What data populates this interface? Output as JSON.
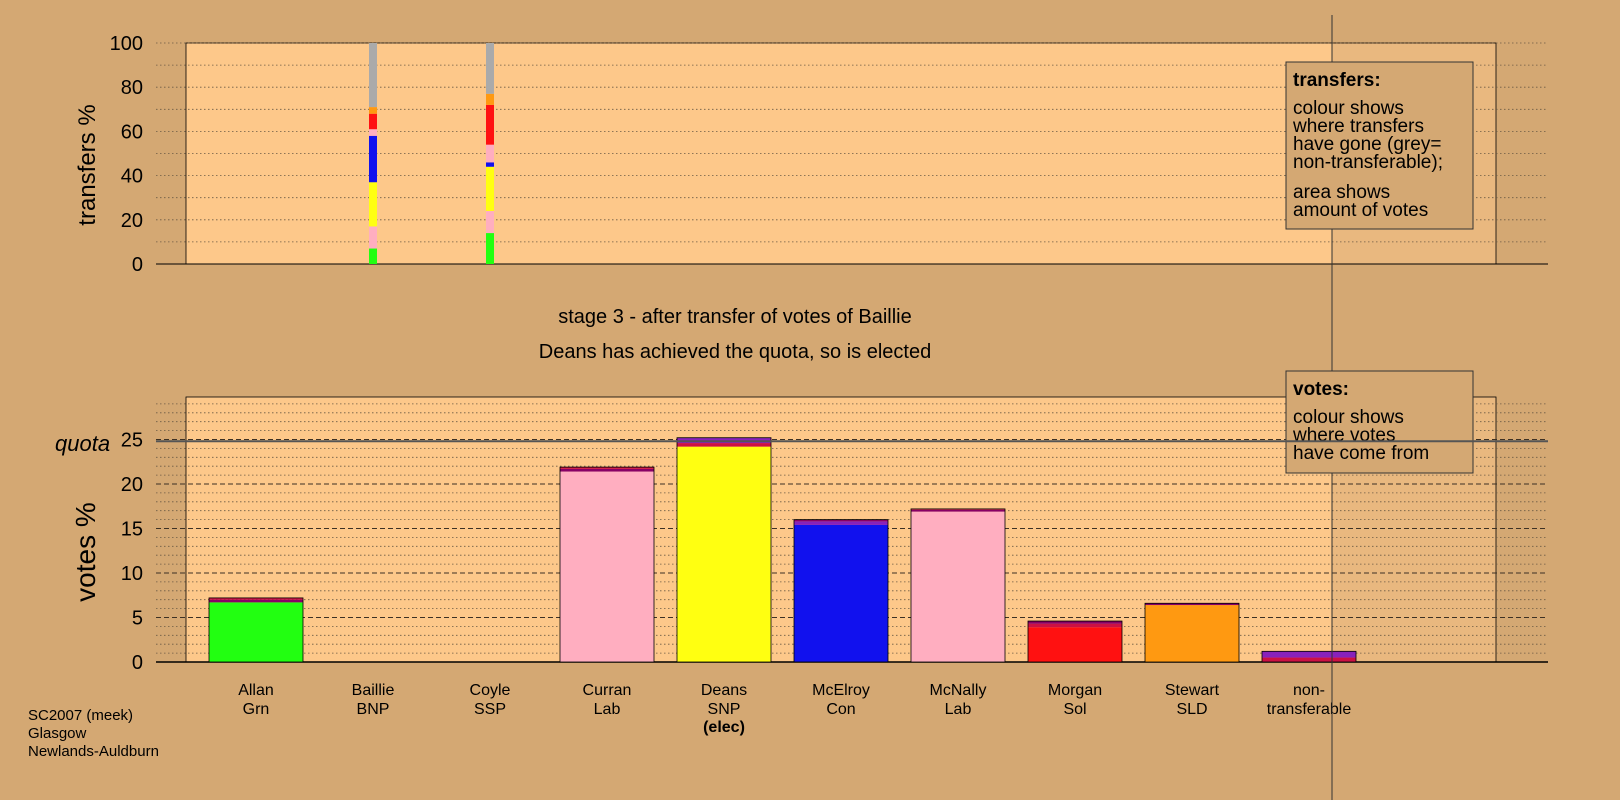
{
  "chart_data": [
    {
      "type": "bar",
      "panel": "transfers",
      "ylabel": "transfers %",
      "ylim": [
        0,
        100
      ],
      "yticks": [
        0,
        20,
        40,
        60,
        80,
        100
      ],
      "grid": "dotted minor lines every 10",
      "note": {
        "title": "transfers:",
        "line1": "colour shows",
        "line2": "where transfers",
        "line3": "have gone (grey=",
        "line4": "non-transferable);",
        "line5": "area shows",
        "line6": "amount of votes"
      },
      "bars": [
        {
          "candidate": "Baillie",
          "segments": [
            {
              "party": "Grn",
              "color": "#22ff11",
              "value": 7
            },
            {
              "party": "Lab",
              "color": "#ffaec0",
              "value": 10
            },
            {
              "party": "SNP",
              "color": "#ffff11",
              "value": 20
            },
            {
              "party": "Con",
              "color": "#1111ee",
              "value": 21
            },
            {
              "party": "Lab",
              "color": "#ffaec0",
              "value": 3
            },
            {
              "party": "Sol",
              "color": "#ff1111",
              "value": 7
            },
            {
              "party": "SLD",
              "color": "#ff9911",
              "value": 3
            },
            {
              "party": "non-transferable",
              "color": "#aaaaaa",
              "value": 29
            }
          ]
        },
        {
          "candidate": "Coyle",
          "segments": [
            {
              "party": "Grn",
              "color": "#22ff11",
              "value": 14
            },
            {
              "party": "Lab",
              "color": "#ffaec0",
              "value": 10
            },
            {
              "party": "SNP",
              "color": "#ffff11",
              "value": 20
            },
            {
              "party": "Con",
              "color": "#1111ee",
              "value": 2
            },
            {
              "party": "Lab",
              "color": "#ffaec0",
              "value": 8
            },
            {
              "party": "Sol",
              "color": "#ff1111",
              "value": 18
            },
            {
              "party": "SLD",
              "color": "#ff9911",
              "value": 5
            },
            {
              "party": "non-transferable",
              "color": "#aaaaaa",
              "value": 23
            }
          ]
        }
      ]
    },
    {
      "type": "bar",
      "panel": "votes",
      "title": "stage 3 - after transfer of votes of Baillie",
      "subtitle": "Deans has achieved the quota, so is elected",
      "ylabel": "votes %",
      "ylim": [
        0,
        30
      ],
      "yticks": [
        0,
        5,
        10,
        15,
        20,
        25
      ],
      "quota_label": "quota",
      "quota": 24.8,
      "grid": "dashed major every 5, dotted minor every 1",
      "note": {
        "title": "votes:",
        "line1": "colour shows",
        "line2": "where votes",
        "line3": "have come from"
      },
      "categories": [
        {
          "name": "Allan",
          "party": "Grn",
          "values": [
            {
              "color": "#22ff11",
              "value": 6.7
            },
            {
              "color": "#880066",
              "value": 0.3
            },
            {
              "color": "#cc1144",
              "value": 0.2
            }
          ]
        },
        {
          "name": "Baillie",
          "party": "BNP",
          "values": []
        },
        {
          "name": "Coyle",
          "party": "SSP",
          "values": []
        },
        {
          "name": "Curran",
          "party": "Lab",
          "values": [
            {
              "color": "#ffaec0",
              "value": 21.4
            },
            {
              "color": "#880066",
              "value": 0.3
            },
            {
              "color": "#cc1144",
              "value": 0.2
            }
          ]
        },
        {
          "name": "Deans",
          "party": "SNP",
          "status": "(elec)",
          "values": [
            {
              "color": "#ffff11",
              "value": 24.2
            },
            {
              "color": "#cc1144",
              "value": 0.4
            },
            {
              "color": "#8822bb",
              "value": 0.6
            }
          ]
        },
        {
          "name": "McElroy",
          "party": "Con",
          "values": [
            {
              "color": "#1111ee",
              "value": 15.4
            },
            {
              "color": "#8822bb",
              "value": 0.4
            },
            {
              "color": "#880066",
              "value": 0.2
            }
          ]
        },
        {
          "name": "McNally",
          "party": "Lab",
          "values": [
            {
              "color": "#ffaec0",
              "value": 16.9
            },
            {
              "color": "#880066",
              "value": 0.2
            },
            {
              "color": "#cc1144",
              "value": 0.1
            }
          ]
        },
        {
          "name": "Morgan",
          "party": "Sol",
          "values": [
            {
              "color": "#ff1111",
              "value": 3.9
            },
            {
              "color": "#cc1144",
              "value": 0.4
            },
            {
              "color": "#880066",
              "value": 0.3
            }
          ]
        },
        {
          "name": "Stewart",
          "party": "SLD",
          "values": [
            {
              "color": "#ff9911",
              "value": 6.4
            },
            {
              "color": "#880066",
              "value": 0.2
            }
          ]
        },
        {
          "name": "non-",
          "party": "transferable",
          "values": [
            {
              "color": "#cc1144",
              "value": 0.5
            },
            {
              "color": "#8822bb",
              "value": 0.7
            }
          ]
        }
      ]
    }
  ],
  "footer": {
    "line1": "SC2007 (meek)",
    "line2": "Glasgow",
    "line3": "Newlands-Auldburn"
  }
}
